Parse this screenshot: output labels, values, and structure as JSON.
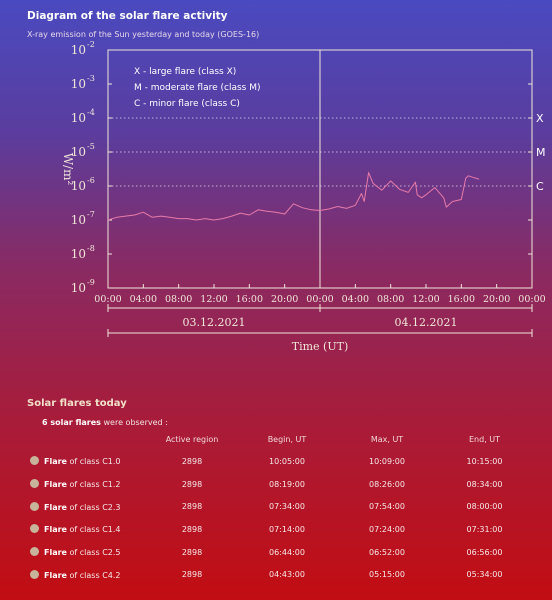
{
  "header": {
    "title": "Diagram of the solar flare activity",
    "subtitle": "X-ray emission of the Sun yesterday and today (GOES-16)"
  },
  "chart_data": {
    "type": "line",
    "title": "Diagram of the solar flare activity",
    "xlabel": "Time (UT)",
    "ylabel": "W/m²",
    "yscale": "log",
    "ylim": [
      1e-09,
      0.01
    ],
    "y_ticks": [
      {
        "mantissa": "10",
        "exp": "-2",
        "value": 0.01
      },
      {
        "mantissa": "10",
        "exp": "-3",
        "value": 0.001
      },
      {
        "mantissa": "10",
        "exp": "-4",
        "value": 0.0001
      },
      {
        "mantissa": "10",
        "exp": "-5",
        "value": 1e-05
      },
      {
        "mantissa": "10",
        "exp": "-6",
        "value": 1e-06
      },
      {
        "mantissa": "10",
        "exp": "-7",
        "value": 1e-07
      },
      {
        "mantissa": "10",
        "exp": "-8",
        "value": 1e-08
      },
      {
        "mantissa": "10",
        "exp": "-9",
        "value": 1e-09
      }
    ],
    "x_ticks": [
      "00:00",
      "04:00",
      "08:00",
      "12:00",
      "16:00",
      "20:00",
      "00:00",
      "04:00",
      "08:00",
      "12:00",
      "16:00",
      "20:00",
      "00:00"
    ],
    "days": [
      "03.12.2021",
      "04.12.2021"
    ],
    "class_lines": [
      {
        "label": "X",
        "value": 0.0001
      },
      {
        "label": "M",
        "value": 1e-05
      },
      {
        "label": "C",
        "value": 1e-06
      }
    ],
    "legend": [
      "X - large flare (class X)",
      "M - moderate flare (class M)",
      "C - minor flare (class C)"
    ],
    "grid": false,
    "legend_position": "top-left",
    "line_color": "#e87aa8",
    "series": [
      {
        "x_hours": [
          0,
          1,
          2,
          3,
          4,
          5,
          6,
          7,
          8,
          9,
          10,
          11,
          12,
          13,
          14,
          15,
          16,
          17,
          18,
          19,
          20,
          21,
          22,
          23,
          24,
          25,
          26,
          27,
          28,
          28.7,
          29,
          29.5,
          30,
          31,
          32,
          33,
          34,
          34.8,
          35,
          35.5,
          36,
          37,
          38,
          38.3,
          39,
          40,
          40.5,
          40.8,
          41.3,
          42
        ],
        "values": [
          1e-07,
          1.2e-07,
          1.3e-07,
          1.4e-07,
          1.7e-07,
          1.2e-07,
          1.3e-07,
          1.2e-07,
          1.1e-07,
          1.1e-07,
          1e-07,
          1.1e-07,
          1e-07,
          1.1e-07,
          1.3e-07,
          1.6e-07,
          1.4e-07,
          2e-07,
          1.8e-07,
          1.7e-07,
          1.5e-07,
          3e-07,
          2.3e-07,
          2e-07,
          1.9e-07,
          2.1e-07,
          2.5e-07,
          2.2e-07,
          2.7e-07,
          6e-07,
          3.5e-07,
          2.5e-06,
          1.2e-06,
          7.5e-07,
          1.4e-06,
          8e-07,
          6.5e-07,
          1.3e-06,
          5.5e-07,
          4.5e-07,
          5.5e-07,
          9e-07,
          4.5e-07,
          2.4e-07,
          3.5e-07,
          4e-07,
          1.7e-06,
          2e-06,
          1.8e-06,
          1.6e-06
        ]
      }
    ]
  },
  "flares": {
    "section_title": "Solar flares today",
    "count_bold": "6 solar flares",
    "count_rest": "were observed :",
    "columns": {
      "active_region": "Active region",
      "begin": "Begin, UT",
      "max": "Max, UT",
      "end": "End, UT"
    },
    "flare_word": "Flare",
    "of_class_text": "of class",
    "rows": [
      {
        "cls": "C1.0",
        "region": "2898",
        "begin": "10:05:00",
        "max": "10:09:00",
        "end": "10:15:00"
      },
      {
        "cls": "C1.2",
        "region": "2898",
        "begin": "08:19:00",
        "max": "08:26:00",
        "end": "08:34:00"
      },
      {
        "cls": "C2.3",
        "region": "2898",
        "begin": "07:34:00",
        "max": "07:54:00",
        "end": "08:00:00"
      },
      {
        "cls": "C1.4",
        "region": "2898",
        "begin": "07:14:00",
        "max": "07:24:00",
        "end": "07:31:00"
      },
      {
        "cls": "C2.5",
        "region": "2898",
        "begin": "06:44:00",
        "max": "06:52:00",
        "end": "06:56:00"
      },
      {
        "cls": "C4.2",
        "region": "2898",
        "begin": "04:43:00",
        "max": "05:15:00",
        "end": "05:34:00"
      }
    ]
  }
}
